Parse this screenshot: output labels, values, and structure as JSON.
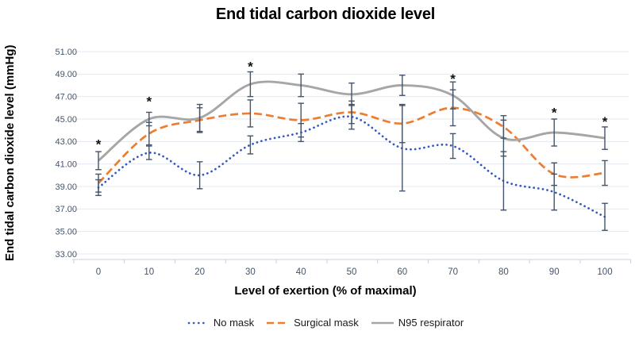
{
  "chart_data": {
    "type": "line",
    "title": "End tidal carbon dioxide level",
    "xlabel": "Level of exertion (% of maximal)",
    "ylabel": "End tidal carbon dioxide level (mmHg)",
    "categories": [
      0,
      10,
      20,
      30,
      40,
      50,
      60,
      70,
      80,
      90,
      100
    ],
    "x_tick_labels": [
      "0",
      "10",
      "20",
      "30",
      "40",
      "50",
      "60",
      "70",
      "80",
      "90",
      "100"
    ],
    "y_tick_labels": [
      "51.00",
      "49.00",
      "47.00",
      "45.00",
      "43.00",
      "41.00",
      "39.00",
      "37.00",
      "35.00",
      "33.00"
    ],
    "ylim": [
      33,
      51
    ],
    "y_step": 2,
    "grid": true,
    "smooth_lines": true,
    "legend_position": "bottom",
    "error_bar_color": "#44546A",
    "series": [
      {
        "name": "No mask",
        "style": "dotted",
        "color": "#3457C1",
        "values": [
          38.9,
          42.0,
          40.0,
          42.7,
          43.8,
          45.2,
          42.4,
          42.6,
          39.5,
          38.5,
          36.3
        ],
        "error": [
          0.7,
          0.6,
          1.2,
          0.8,
          0.8,
          1.1,
          3.8,
          1.1,
          2.6,
          1.6,
          1.2
        ]
      },
      {
        "name": "Surgical mask",
        "style": "dashed",
        "color": "#ED7D31",
        "values": [
          39.3,
          43.7,
          44.9,
          45.5,
          44.9,
          45.6,
          44.6,
          46.0,
          44.3,
          40.1,
          40.2
        ],
        "error": [
          0.8,
          1.0,
          1.1,
          1.2,
          1.5,
          1.0,
          1.7,
          1.6,
          1.0,
          1.0,
          1.1
        ]
      },
      {
        "name": "N95 respirator",
        "style": "solid",
        "color": "#A6A6A6",
        "values": [
          41.3,
          45.0,
          45.1,
          48.1,
          48.0,
          47.2,
          48.0,
          47.1,
          43.3,
          43.8,
          43.3
        ],
        "error": [
          0.8,
          0.6,
          1.2,
          1.1,
          1.0,
          1.0,
          0.9,
          1.2,
          1.6,
          1.2,
          1.0
        ]
      }
    ],
    "annotations": [
      {
        "symbol": "*",
        "x": 0,
        "value": 43.0
      },
      {
        "symbol": "*",
        "x": 10,
        "value": 46.8
      },
      {
        "symbol": "*",
        "x": 30,
        "value": 49.9
      },
      {
        "symbol": "*",
        "x": 70,
        "value": 48.8
      },
      {
        "symbol": "*",
        "x": 90,
        "value": 45.8
      },
      {
        "symbol": "*",
        "x": 100,
        "value": 45.0
      }
    ]
  }
}
